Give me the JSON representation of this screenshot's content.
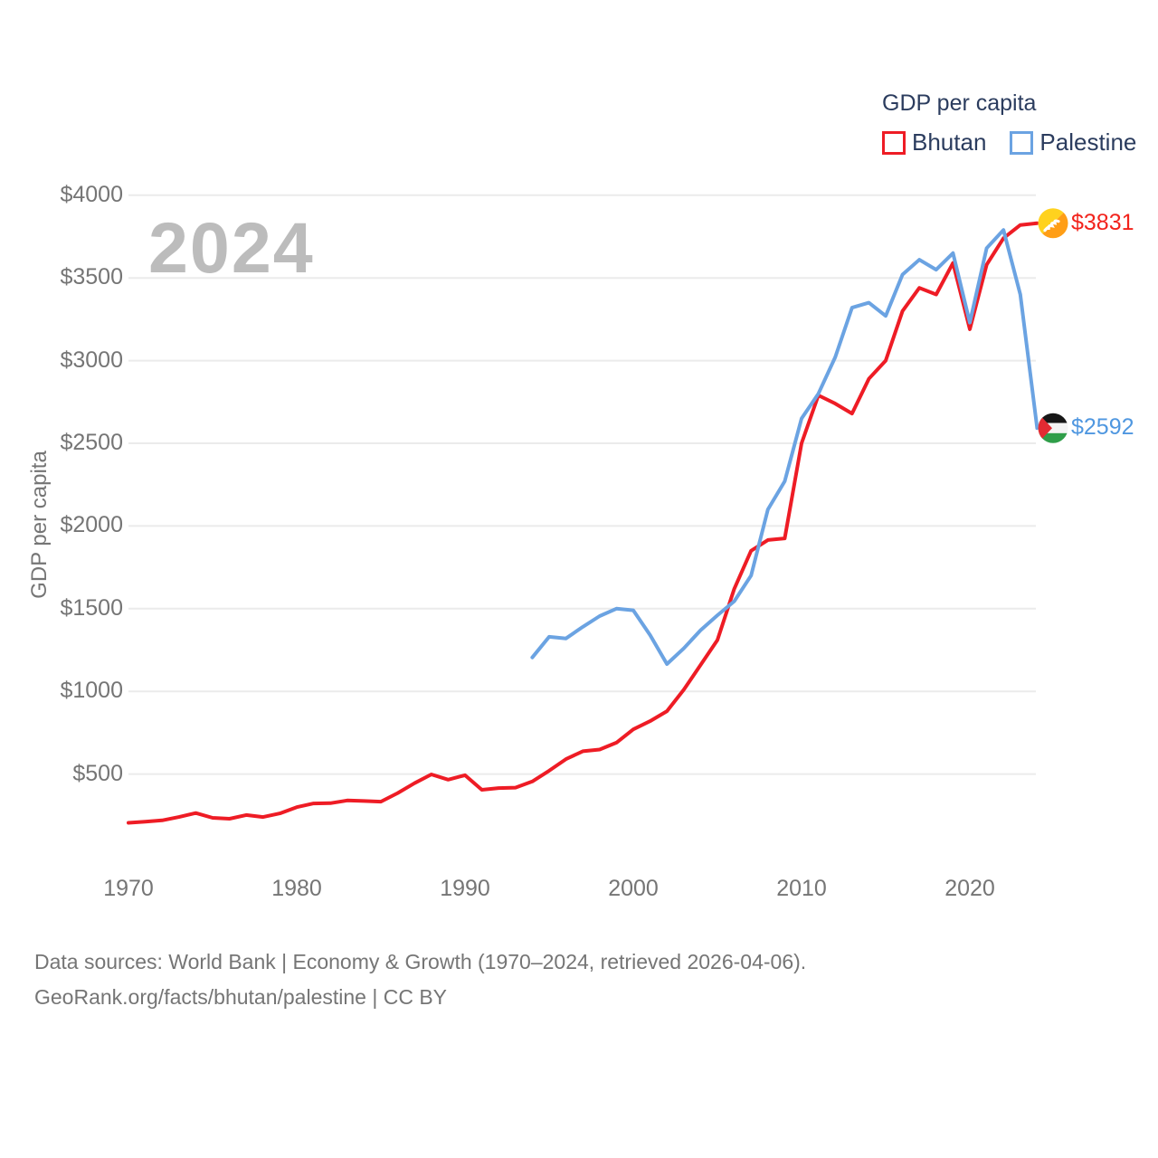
{
  "watermark": "2024",
  "legend": {
    "title": "GDP per capita",
    "series": [
      {
        "label": "Bhutan",
        "color": "#ee1c25"
      },
      {
        "label": "Palestine",
        "color": "#6ba3e2"
      }
    ]
  },
  "y_axis": {
    "title": "GDP per capita",
    "ticks": [
      {
        "value": 4000,
        "label": "$4000"
      },
      {
        "value": 3500,
        "label": "$3500"
      },
      {
        "value": 3000,
        "label": "$3000"
      },
      {
        "value": 2500,
        "label": "$2500"
      },
      {
        "value": 2000,
        "label": "$2000"
      },
      {
        "value": 1500,
        "label": "$1500"
      },
      {
        "value": 1000,
        "label": "$1000"
      },
      {
        "value": 500,
        "label": "$500"
      }
    ]
  },
  "x_axis": {
    "ticks": [
      {
        "value": 1970,
        "label": "1970"
      },
      {
        "value": 1980,
        "label": "1980"
      },
      {
        "value": 1990,
        "label": "1990"
      },
      {
        "value": 2000,
        "label": "2000"
      },
      {
        "value": 2010,
        "label": "2010"
      },
      {
        "value": 2020,
        "label": "2020"
      }
    ]
  },
  "end_labels": [
    {
      "series": "Bhutan",
      "value_label": "$3831",
      "flag": "bhutan-flag",
      "color": "#f2231c"
    },
    {
      "series": "Palestine",
      "value_label": "$2592",
      "flag": "palestine-flag",
      "color": "#4f97e0"
    }
  ],
  "footer": {
    "line1": "Data sources: World Bank | Economy & Growth (1970–2024, retrieved 2026-04-06).",
    "line2": "GeoRank.org/facts/bhutan/palestine | CC BY"
  },
  "colors": {
    "bhutan": "#ee1c25",
    "palestine": "#6ba3e2",
    "grid": "#ebebeb",
    "tick_text": "#757575",
    "legend_text": "#2b3c5e",
    "watermark": "#bcbcbc",
    "footer_text": "#757575"
  },
  "chart_data": {
    "type": "line",
    "title": "GDP per capita",
    "xlabel": "",
    "ylabel": "GDP per capita",
    "x_range": [
      1970,
      2024
    ],
    "ylim": [
      0,
      4000
    ],
    "grid": "horizontal",
    "legend_position": "top-right",
    "series": [
      {
        "name": "Bhutan",
        "color": "#ee1c25",
        "x": [
          1970,
          1971,
          1972,
          1973,
          1974,
          1975,
          1976,
          1977,
          1978,
          1979,
          1980,
          1981,
          1982,
          1983,
          1984,
          1985,
          1986,
          1987,
          1988,
          1989,
          1990,
          1991,
          1992,
          1993,
          1994,
          1995,
          1996,
          1997,
          1998,
          1999,
          2000,
          2001,
          2002,
          2003,
          2004,
          2005,
          2006,
          2007,
          2008,
          2009,
          2010,
          2011,
          2012,
          2013,
          2014,
          2015,
          2016,
          2017,
          2018,
          2019,
          2020,
          2021,
          2022,
          2023,
          2024
        ],
        "values": [
          205,
          212,
          220,
          240,
          264,
          235,
          230,
          252,
          240,
          262,
          300,
          322,
          324,
          340,
          337,
          333,
          385,
          445,
          498,
          466,
          493,
          405,
          415,
          418,
          455,
          520,
          590,
          638,
          648,
          690,
          770,
          820,
          880,
          1010,
          1160,
          1310,
          1620,
          1850,
          1915,
          1925,
          2500,
          2790,
          2740,
          2680,
          2890,
          3000,
          3300,
          3440,
          3400,
          3590,
          3190,
          3580,
          3740,
          3820,
          3831
        ]
      },
      {
        "name": "Palestine",
        "color": "#6ba3e2",
        "x": [
          1994,
          1995,
          1996,
          1997,
          1998,
          1999,
          2000,
          2001,
          2002,
          2003,
          2004,
          2005,
          2006,
          2007,
          2008,
          2009,
          2010,
          2011,
          2012,
          2013,
          2014,
          2015,
          2016,
          2017,
          2018,
          2019,
          2020,
          2021,
          2022,
          2023,
          2024
        ],
        "values": [
          1205,
          1330,
          1320,
          1390,
          1455,
          1500,
          1490,
          1340,
          1165,
          1260,
          1370,
          1460,
          1545,
          1700,
          2100,
          2270,
          2650,
          2800,
          3020,
          3320,
          3350,
          3270,
          3520,
          3610,
          3550,
          3650,
          3230,
          3680,
          3790,
          3400,
          2592
        ]
      }
    ]
  }
}
